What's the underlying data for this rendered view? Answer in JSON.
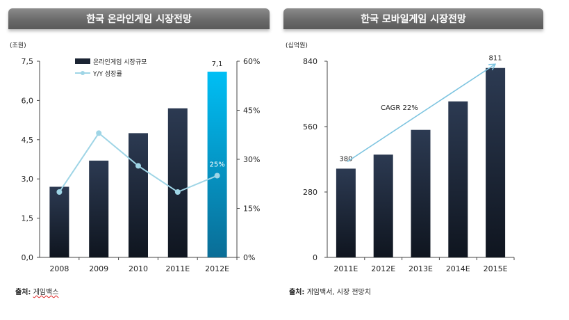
{
  "colors": {
    "title_bar": "#6e6e6e",
    "bar_dark": "#1b2433",
    "bar_highlight": "#00b2ee",
    "line": "#9fd5e6",
    "arrow": "#7dc4e0"
  },
  "left_panel": {
    "title": "한국 온라인게임 시장전망",
    "source_label": "출처:",
    "source_text": "게임백스"
  },
  "right_panel": {
    "title": "한국 모바일게임 시장전망",
    "source_label": "출처:",
    "source_text": "게임백서, 시장 전망치"
  },
  "chart_data": [
    {
      "type": "bar",
      "title": "한국 온라인게임 시장전망",
      "ylabel": "(조원)",
      "categories": [
        "2008",
        "2009",
        "2010",
        "2011E",
        "2012E"
      ],
      "ylim": [
        0,
        7.5
      ],
      "yticks": [
        "0,0",
        "1,5",
        "3,0",
        "4,5",
        "6,0",
        "7,5"
      ],
      "y2lim": [
        0,
        60
      ],
      "y2ticks": [
        "0%",
        "15%",
        "30%",
        "45%",
        "60%"
      ],
      "legend_position": "top-left",
      "series": [
        {
          "name": "온라인게임  시장규모",
          "type": "bar",
          "axis": "left",
          "values": [
            2.7,
            3.7,
            4.75,
            5.7,
            7.1
          ]
        },
        {
          "name": "Y/Y 성장률",
          "type": "line",
          "axis": "right",
          "values": [
            20,
            38,
            28,
            20,
            25
          ]
        }
      ],
      "data_labels": [
        {
          "series": 0,
          "index": 4,
          "text": "7,1"
        },
        {
          "series": 1,
          "index": 4,
          "text": "25%"
        }
      ]
    },
    {
      "type": "bar",
      "title": "한국 모바일게임 시장전망",
      "ylabel": "(십억원)",
      "categories": [
        "2011E",
        "2012E",
        "2013E",
        "2014E",
        "2015E"
      ],
      "ylim": [
        0,
        840
      ],
      "yticks": [
        "0",
        "280",
        "560",
        "840"
      ],
      "series": [
        {
          "type": "bar",
          "values": [
            380,
            440,
            546,
            668,
            811
          ]
        }
      ],
      "data_labels": [
        {
          "series": 0,
          "index": 0,
          "text": "380"
        },
        {
          "series": 0,
          "index": 4,
          "text": "811"
        }
      ],
      "annotations": [
        {
          "text": "CAGR 22%",
          "kind": "arrow",
          "from_index": 0,
          "to_index": 4
        }
      ]
    }
  ]
}
